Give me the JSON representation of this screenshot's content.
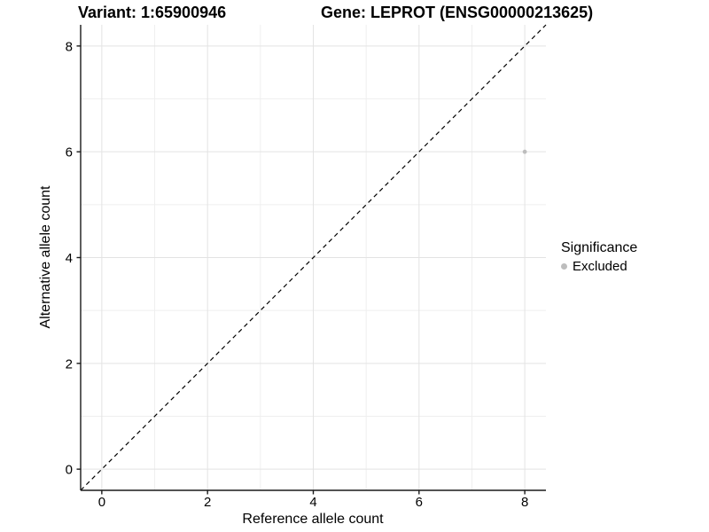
{
  "chart_data": {
    "type": "scatter",
    "title_left": "Variant: 1:65900946",
    "title_right": "Gene: LEPROT (ENSG00000213625)",
    "xlabel": "Reference allele count",
    "ylabel": "Alternative allele count",
    "xlim": [
      -0.4,
      8.4
    ],
    "ylim": [
      -0.4,
      8.4
    ],
    "x_ticks": [
      0,
      2,
      4,
      6,
      8
    ],
    "y_ticks": [
      0,
      2,
      4,
      6,
      8
    ],
    "x_minor_ticks": [
      1,
      3,
      5,
      7
    ],
    "y_minor_ticks": [
      1,
      3,
      5,
      7
    ],
    "grid": true,
    "reference_line": {
      "type": "identity",
      "slope": 1,
      "intercept": 0,
      "style": "dashed"
    },
    "series": [
      {
        "name": "Excluded",
        "color": "#bdbdbd",
        "points": [
          {
            "x": 8,
            "y": 6
          }
        ]
      }
    ],
    "legend": {
      "title": "Significance",
      "position": "right",
      "items": [
        {
          "label": "Excluded",
          "color": "#bdbdbd"
        }
      ]
    },
    "colors": {
      "point": "#bdbdbd",
      "grid_major": "#e3e3e3",
      "grid_minor": "#efefef",
      "axis_line": "#1a1a1a",
      "tick_label": "#000000",
      "reference_line": "#000000",
      "background": "#ffffff"
    }
  }
}
